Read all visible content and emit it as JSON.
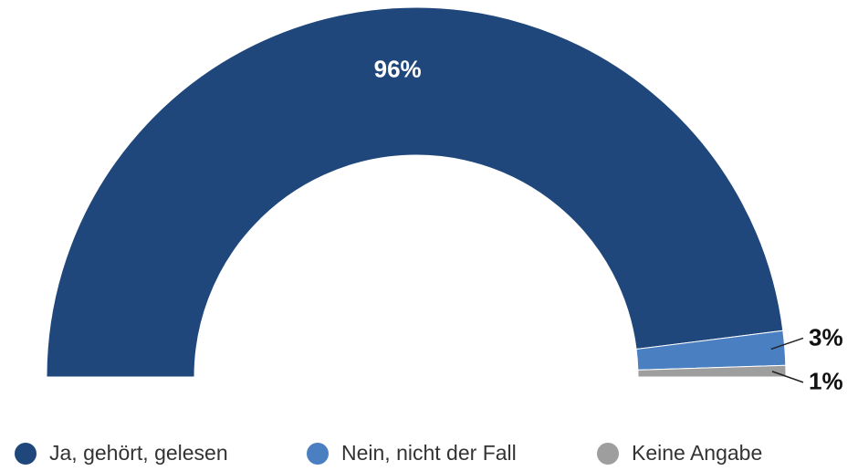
{
  "chart_data": {
    "type": "semidonut",
    "categories": [
      "Ja, gehört, gelesen",
      "Nein, nicht der Fall",
      "Keine Angabe"
    ],
    "values": [
      96,
      3,
      1
    ],
    "value_labels": [
      "96%",
      "3%",
      "1%"
    ],
    "colors": [
      "#1f477b",
      "#4a7fc1",
      "#9e9e9e"
    ],
    "legend": "bottom"
  }
}
